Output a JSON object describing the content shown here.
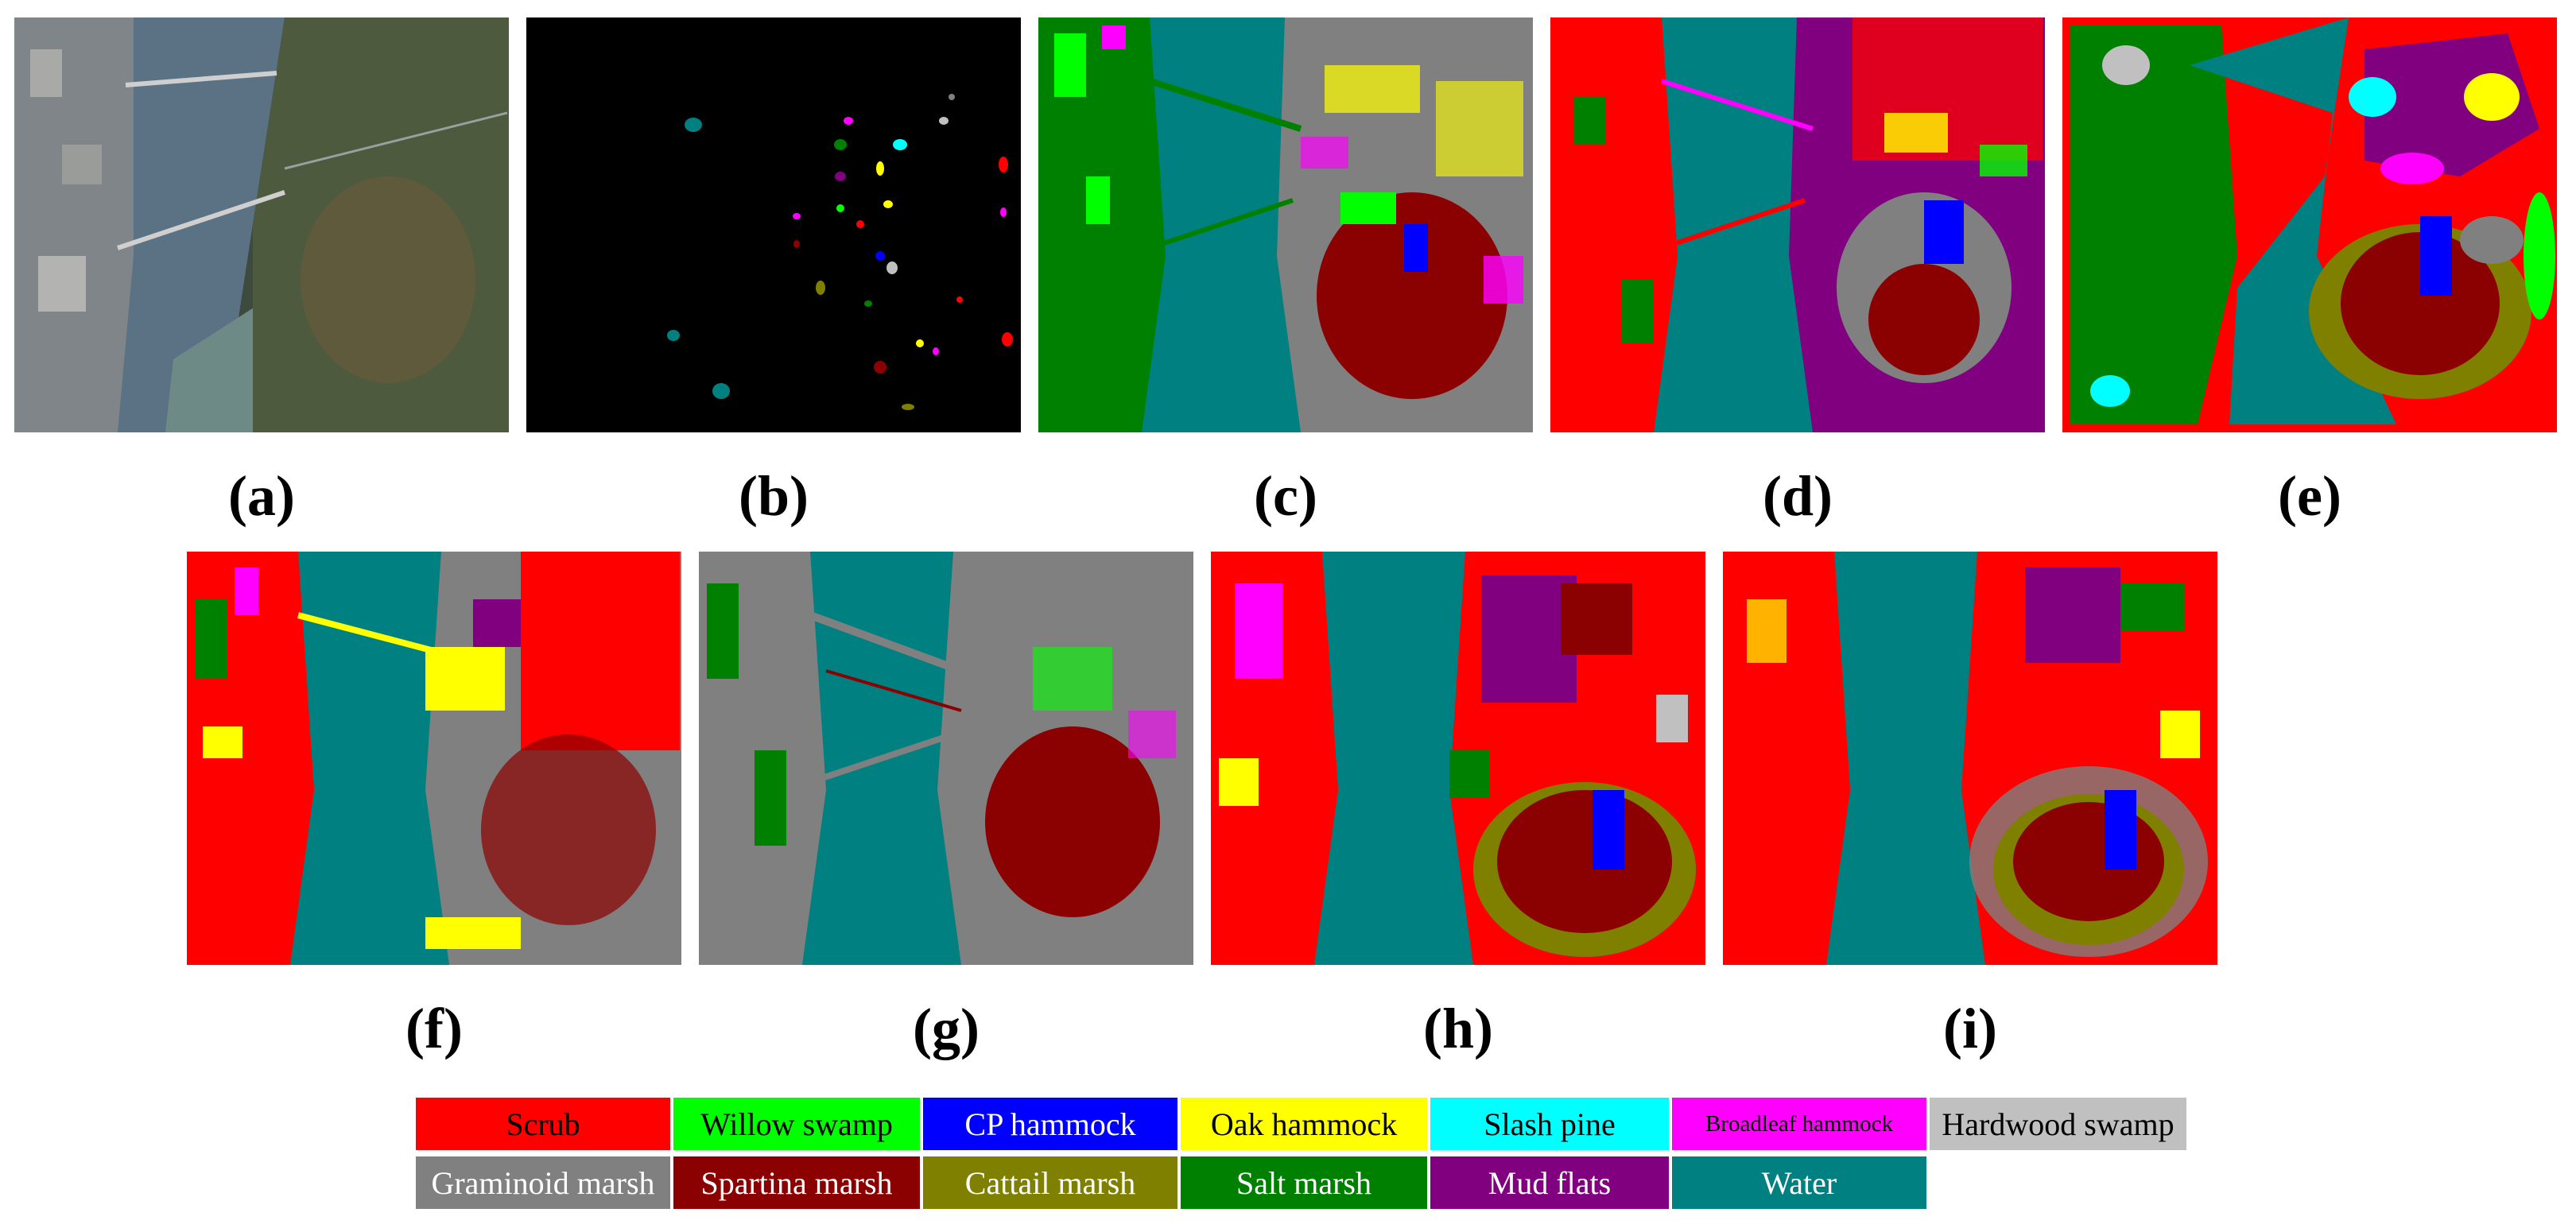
{
  "figure": {
    "panels": [
      {
        "id": "a",
        "caption": "(a)",
        "kind": "satellite"
      },
      {
        "id": "b",
        "caption": "(b)",
        "kind": "ground-truth"
      },
      {
        "id": "c",
        "caption": "(c)",
        "kind": "classification"
      },
      {
        "id": "d",
        "caption": "(d)",
        "kind": "classification"
      },
      {
        "id": "e",
        "caption": "(e)",
        "kind": "classification"
      },
      {
        "id": "f",
        "caption": "(f)",
        "kind": "classification"
      },
      {
        "id": "g",
        "caption": "(g)",
        "kind": "classification"
      },
      {
        "id": "h",
        "caption": "(h)",
        "kind": "classification"
      },
      {
        "id": "i",
        "caption": "(i)",
        "kind": "classification"
      }
    ],
    "legend": [
      {
        "label": "Scrub",
        "color": "#ff0000"
      },
      {
        "label": "Willow swamp",
        "color": "#00ff00"
      },
      {
        "label": "CP hammock",
        "color": "#0000ff"
      },
      {
        "label": "Oak hammock",
        "color": "#ffff00"
      },
      {
        "label": "Slash pine",
        "color": "#00ffff"
      },
      {
        "label": "Broadleaf hammock",
        "color": "#ff00ff"
      },
      {
        "label": "Hardwood swamp",
        "color": "#c0c0c0"
      },
      {
        "label": "Graminoid marsh",
        "color": "#808080"
      },
      {
        "label": "Spartina marsh",
        "color": "#8b0000"
      },
      {
        "label": "Cattail marsh",
        "color": "#808000"
      },
      {
        "label": "Salt marsh",
        "color": "#008000"
      },
      {
        "label": "Mud flats",
        "color": "#800080"
      },
      {
        "label": "Water",
        "color": "#008080"
      }
    ]
  }
}
